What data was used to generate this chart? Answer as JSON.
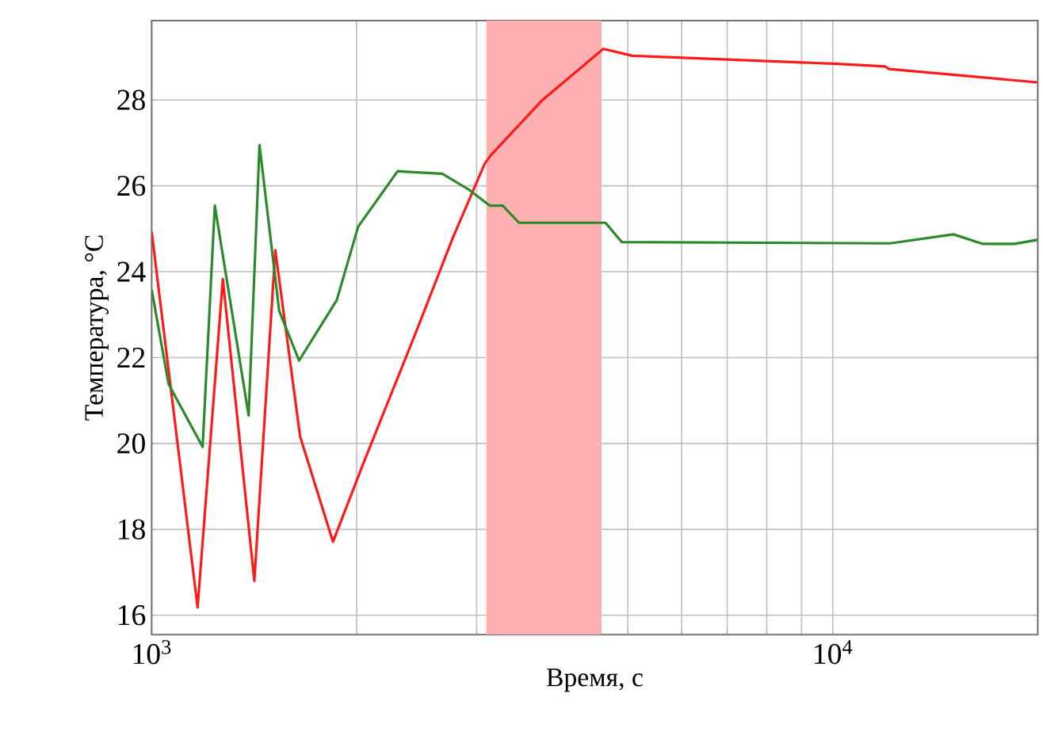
{
  "chart_data": {
    "type": "line",
    "xlabel": "Время, с",
    "ylabel": "Температура, °C",
    "log": "x",
    "grid": true,
    "xlim": [
      1000,
      20000
    ],
    "ylim": [
      15.55,
      29.85
    ],
    "xticks": [
      {
        "value": 1000,
        "label": "10$^{3}$"
      },
      {
        "value": 2000,
        "label": null
      },
      {
        "value": 3000,
        "label": null
      },
      {
        "value": 4000,
        "label": null
      },
      {
        "value": 5000,
        "label": null
      },
      {
        "value": 6000,
        "label": null
      },
      {
        "value": 7000,
        "label": null
      },
      {
        "value": 8000,
        "label": null
      },
      {
        "value": 9000,
        "label": null
      },
      {
        "value": 10000,
        "label": "10$^{4}$"
      },
      {
        "value": 20000,
        "label": null
      }
    ],
    "yticks": [
      16,
      18,
      20,
      22,
      24,
      26,
      28
    ],
    "bands": [
      {
        "axis": "x",
        "from": 3100,
        "to": 4580,
        "color": "#ffb0b0"
      }
    ],
    "series": [
      {
        "color": "#ff1a1a",
        "x": [
          1000,
          1168,
          1272,
          1415,
          1519,
          1652,
          1846,
          2047,
          2445,
          2770,
          3084,
          3143,
          3749,
          4603,
          5077,
          10160,
          11930,
          12100,
          19970
        ],
        "values": [
          24.93,
          16.18,
          23.83,
          16.8,
          24.5,
          20.16,
          17.71,
          19.55,
          22.6,
          24.8,
          26.52,
          26.7,
          28.0,
          29.19,
          29.03,
          28.84,
          28.78,
          28.72,
          28.41
        ]
      },
      {
        "color": "#2a8a2a",
        "x": [
          1000,
          1059,
          1188,
          1238,
          1388,
          1440,
          1539,
          1646,
          1870,
          2010,
          2297,
          2672,
          2923,
          3136,
          3277,
          3462,
          4638,
          4900,
          12140,
          15040,
          16580,
          18500,
          19970
        ],
        "values": [
          23.58,
          21.38,
          19.92,
          25.54,
          20.65,
          26.95,
          23.09,
          21.93,
          23.34,
          25.05,
          26.34,
          26.28,
          25.91,
          25.54,
          25.54,
          25.14,
          25.14,
          24.69,
          24.66,
          24.87,
          24.65,
          24.65,
          24.74
        ]
      }
    ]
  }
}
